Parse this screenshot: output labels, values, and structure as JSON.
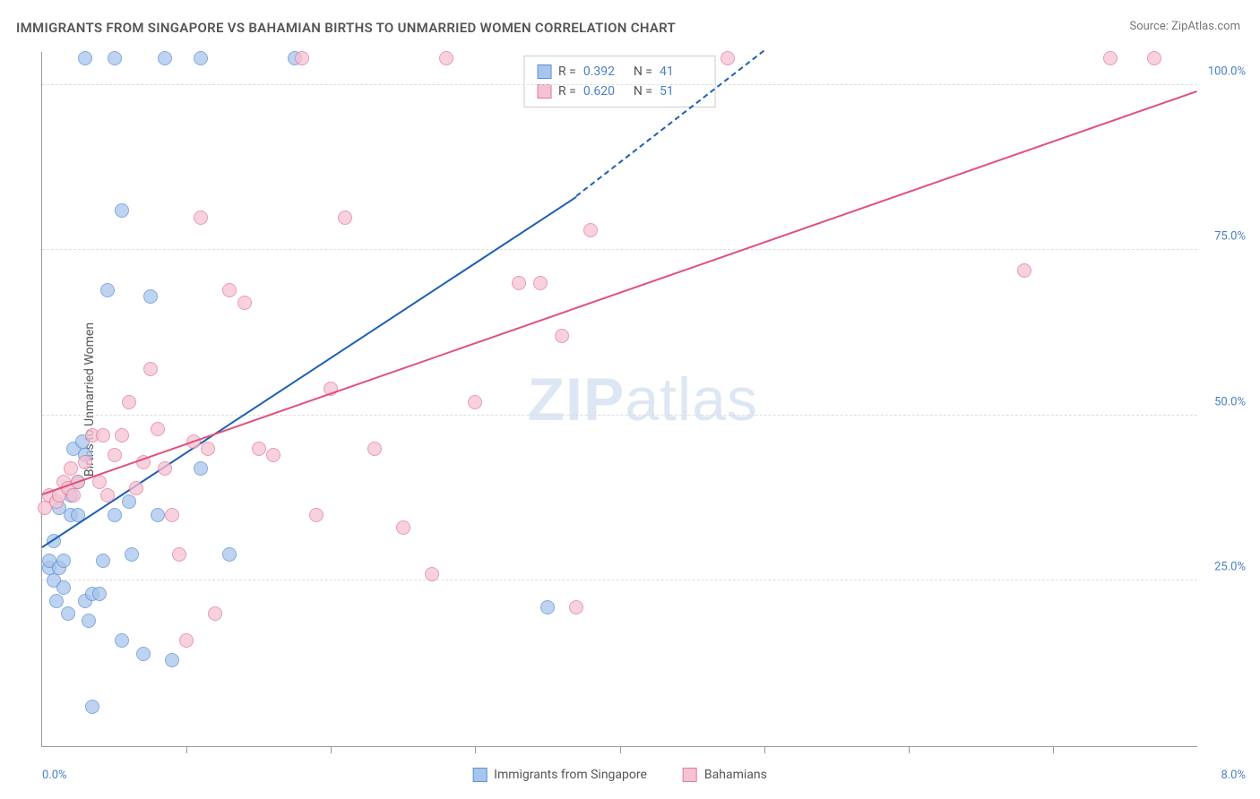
{
  "title": "IMMIGRANTS FROM SINGAPORE VS BAHAMIAN BIRTHS TO UNMARRIED WOMEN CORRELATION CHART",
  "source": "Source: ZipAtlas.com",
  "y_axis_label": "Births to Unmarried Women",
  "watermark_bold": "ZIP",
  "watermark_rest": "atlas",
  "chart": {
    "type": "scatter",
    "xlim": [
      0,
      8
    ],
    "ylim": [
      0,
      105
    ],
    "x_ticks_minor_count": 8,
    "x_tick_labels": [
      {
        "pos": 0,
        "label": "0.0%",
        "align": "left"
      },
      {
        "pos": 8,
        "label": "8.0%",
        "align": "right"
      }
    ],
    "y_gridlines": [
      25,
      50,
      75,
      100
    ],
    "y_tick_labels": [
      {
        "pos": 25,
        "label": "25.0%"
      },
      {
        "pos": 50,
        "label": "50.0%"
      },
      {
        "pos": 75,
        "label": "75.0%"
      },
      {
        "pos": 100,
        "label": "100.0%"
      }
    ],
    "background_color": "#ffffff",
    "grid_color": "#dddddd",
    "axis_color": "#999999",
    "marker_radius": 8,
    "marker_stroke_width": 1.5,
    "marker_fill_opacity": 0.25,
    "series": [
      {
        "name": "Immigrants from Singapore",
        "color_stroke": "#5b8fd6",
        "color_fill": "#a8c5eb",
        "trend_color": "#1e5fb3",
        "R": "0.392",
        "N": "41",
        "trend": {
          "x1": 0,
          "y1": 30,
          "x2": 3.7,
          "y2": 83,
          "x2_ext": 5.0,
          "y2_ext": 105
        },
        "points": [
          [
            0.05,
            27
          ],
          [
            0.05,
            28
          ],
          [
            0.08,
            25
          ],
          [
            0.1,
            22
          ],
          [
            0.12,
            27
          ],
          [
            0.15,
            24
          ],
          [
            0.15,
            28
          ],
          [
            0.18,
            20
          ],
          [
            0.2,
            35
          ],
          [
            0.2,
            38
          ],
          [
            0.22,
            45
          ],
          [
            0.25,
            35
          ],
          [
            0.28,
            46
          ],
          [
            0.3,
            22
          ],
          [
            0.3,
            44
          ],
          [
            0.32,
            19
          ],
          [
            0.35,
            23
          ],
          [
            0.4,
            23
          ],
          [
            0.42,
            28
          ],
          [
            0.45,
            69
          ],
          [
            0.5,
            35
          ],
          [
            0.5,
            104
          ],
          [
            0.55,
            16
          ],
          [
            0.6,
            37
          ],
          [
            0.62,
            29
          ],
          [
            0.7,
            14
          ],
          [
            0.75,
            68
          ],
          [
            0.8,
            35
          ],
          [
            0.85,
            104
          ],
          [
            0.9,
            13
          ],
          [
            0.3,
            104
          ],
          [
            1.1,
            104
          ],
          [
            1.1,
            42
          ],
          [
            0.55,
            81
          ],
          [
            1.3,
            29
          ],
          [
            0.12,
            36
          ],
          [
            0.25,
            40
          ],
          [
            1.75,
            104
          ],
          [
            3.5,
            21
          ],
          [
            0.35,
            6
          ],
          [
            0.08,
            31
          ]
        ]
      },
      {
        "name": "Bahamians",
        "color_stroke": "#e47a9a",
        "color_fill": "#f5c2d2",
        "trend_color": "#e0517a",
        "R": "0.620",
        "N": "51",
        "trend": {
          "x1": 0,
          "y1": 38,
          "x2": 8.0,
          "y2": 99
        },
        "points": [
          [
            0.02,
            36
          ],
          [
            0.05,
            38
          ],
          [
            0.1,
            37
          ],
          [
            0.12,
            38
          ],
          [
            0.15,
            40
          ],
          [
            0.18,
            39
          ],
          [
            0.2,
            42
          ],
          [
            0.22,
            38
          ],
          [
            0.25,
            40
          ],
          [
            0.3,
            43
          ],
          [
            0.35,
            47
          ],
          [
            0.4,
            40
          ],
          [
            0.42,
            47
          ],
          [
            0.45,
            38
          ],
          [
            0.5,
            44
          ],
          [
            0.55,
            47
          ],
          [
            0.6,
            52
          ],
          [
            0.65,
            39
          ],
          [
            0.7,
            43
          ],
          [
            0.75,
            57
          ],
          [
            0.8,
            48
          ],
          [
            0.85,
            42
          ],
          [
            0.9,
            35
          ],
          [
            0.95,
            29
          ],
          [
            1.0,
            16
          ],
          [
            1.05,
            46
          ],
          [
            1.1,
            80
          ],
          [
            1.15,
            45
          ],
          [
            1.2,
            20
          ],
          [
            1.3,
            69
          ],
          [
            1.4,
            67
          ],
          [
            1.5,
            45
          ],
          [
            1.6,
            44
          ],
          [
            1.8,
            104
          ],
          [
            1.9,
            35
          ],
          [
            2.0,
            54
          ],
          [
            2.1,
            80
          ],
          [
            2.3,
            45
          ],
          [
            2.5,
            33
          ],
          [
            2.7,
            26
          ],
          [
            2.8,
            104
          ],
          [
            3.0,
            52
          ],
          [
            3.3,
            70
          ],
          [
            3.45,
            70
          ],
          [
            3.6,
            62
          ],
          [
            3.7,
            21
          ],
          [
            3.8,
            78
          ],
          [
            4.75,
            104
          ],
          [
            6.8,
            72
          ],
          [
            7.4,
            104
          ],
          [
            7.7,
            104
          ]
        ]
      }
    ]
  },
  "bottom_legend": [
    {
      "label": "Immigrants from Singapore",
      "stroke": "#5b8fd6",
      "fill": "#a8c5eb"
    },
    {
      "label": "Bahamians",
      "stroke": "#e47a9a",
      "fill": "#f5c2d2"
    }
  ]
}
